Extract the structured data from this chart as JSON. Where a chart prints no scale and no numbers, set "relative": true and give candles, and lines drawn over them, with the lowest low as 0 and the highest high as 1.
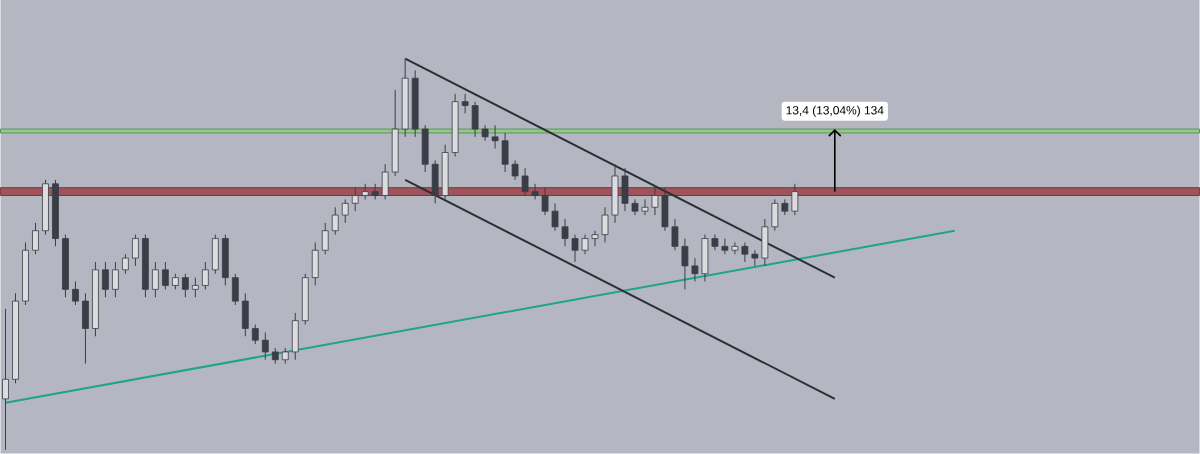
{
  "chart_data": {
    "type": "candlestick",
    "relative": true,
    "color": "#3a3d46",
    "categories": [
      null,
      null,
      null,
      null,
      null,
      null,
      null,
      null,
      null,
      null,
      null,
      null,
      null,
      null,
      null,
      null,
      null,
      null,
      null,
      null,
      null,
      null,
      null,
      null,
      null,
      null,
      null,
      null,
      null,
      null,
      null,
      null,
      null,
      null,
      null,
      null,
      null,
      null,
      null,
      null,
      null,
      null,
      null,
      null,
      null,
      null,
      null,
      null,
      null,
      null,
      null,
      null,
      null,
      null,
      null,
      null,
      null,
      null,
      null,
      null,
      null,
      null,
      null,
      null,
      null,
      null,
      null,
      null,
      null,
      null,
      null,
      null,
      null,
      null,
      null,
      null,
      null,
      null,
      null,
      null,
      null,
      null,
      null,
      null,
      null,
      null,
      null,
      null,
      null,
      null,
      null,
      null,
      null,
      null,
      null,
      null,
      null,
      null,
      null,
      null,
      null,
      null,
      null,
      null,
      null,
      null,
      null,
      null,
      null,
      null,
      null,
      null,
      null,
      null,
      null,
      null,
      null,
      null,
      null,
      null
    ],
    "ohlc": [
      [
        0.13,
        0.36,
        0.0,
        0.18
      ],
      [
        0.18,
        0.4,
        0.17,
        0.38
      ],
      [
        0.38,
        0.53,
        0.37,
        0.51
      ],
      [
        0.51,
        0.58,
        0.5,
        0.56
      ],
      [
        0.56,
        0.69,
        0.55,
        0.68
      ],
      [
        0.68,
        0.69,
        0.52,
        0.54
      ],
      [
        0.54,
        0.55,
        0.39,
        0.41
      ],
      [
        0.41,
        0.43,
        0.37,
        0.38
      ],
      [
        0.38,
        0.4,
        0.22,
        0.31
      ],
      [
        0.31,
        0.48,
        0.29,
        0.46
      ],
      [
        0.46,
        0.48,
        0.39,
        0.41
      ],
      [
        0.41,
        0.48,
        0.39,
        0.46
      ],
      [
        0.46,
        0.5,
        0.45,
        0.49
      ],
      [
        0.49,
        0.55,
        0.47,
        0.54
      ],
      [
        0.54,
        0.55,
        0.39,
        0.41
      ],
      [
        0.41,
        0.48,
        0.39,
        0.46
      ],
      [
        0.46,
        0.48,
        0.41,
        0.42
      ],
      [
        0.42,
        0.45,
        0.41,
        0.44
      ],
      [
        0.44,
        0.45,
        0.39,
        0.41
      ],
      [
        0.41,
        0.44,
        0.39,
        0.42
      ],
      [
        0.42,
        0.48,
        0.41,
        0.46
      ],
      [
        0.46,
        0.55,
        0.45,
        0.54
      ],
      [
        0.54,
        0.55,
        0.42,
        0.44
      ],
      [
        0.44,
        0.45,
        0.37,
        0.38
      ],
      [
        0.38,
        0.4,
        0.29,
        0.31
      ],
      [
        0.31,
        0.32,
        0.27,
        0.28
      ],
      [
        0.28,
        0.3,
        0.23,
        0.25
      ],
      [
        0.25,
        0.26,
        0.22,
        0.23
      ],
      [
        0.23,
        0.26,
        0.22,
        0.25
      ],
      [
        0.25,
        0.35,
        0.23,
        0.33
      ],
      [
        0.33,
        0.45,
        0.32,
        0.44
      ],
      [
        0.44,
        0.53,
        0.42,
        0.51
      ],
      [
        0.51,
        0.58,
        0.5,
        0.56
      ],
      [
        0.56,
        0.62,
        0.55,
        0.6
      ],
      [
        0.6,
        0.64,
        0.58,
        0.63
      ],
      [
        0.63,
        0.67,
        0.61,
        0.65
      ],
      [
        0.65,
        0.68,
        0.64,
        0.66
      ],
      [
        0.66,
        0.68,
        0.64,
        0.65
      ],
      [
        0.65,
        0.73,
        0.64,
        0.71
      ],
      [
        0.71,
        0.92,
        0.7,
        0.82
      ],
      [
        0.82,
        1.0,
        0.8,
        0.95
      ],
      [
        0.95,
        0.97,
        0.8,
        0.82
      ],
      [
        0.82,
        0.83,
        0.71,
        0.73
      ],
      [
        0.73,
        0.74,
        0.63,
        0.65
      ],
      [
        0.65,
        0.78,
        0.64,
        0.76
      ],
      [
        0.76,
        0.91,
        0.75,
        0.89
      ],
      [
        0.89,
        0.91,
        0.86,
        0.88
      ],
      [
        0.88,
        0.89,
        0.8,
        0.82
      ],
      [
        0.82,
        0.83,
        0.79,
        0.8
      ],
      [
        0.8,
        0.83,
        0.77,
        0.79
      ],
      [
        0.79,
        0.81,
        0.71,
        0.73
      ],
      [
        0.73,
        0.74,
        0.69,
        0.7
      ],
      [
        0.7,
        0.72,
        0.65,
        0.66
      ],
      [
        0.66,
        0.68,
        0.64,
        0.65
      ],
      [
        0.65,
        0.67,
        0.6,
        0.61
      ],
      [
        0.61,
        0.63,
        0.56,
        0.57
      ],
      [
        0.57,
        0.59,
        0.52,
        0.54
      ],
      [
        0.54,
        0.55,
        0.48,
        0.51
      ],
      [
        0.51,
        0.55,
        0.5,
        0.54
      ],
      [
        0.54,
        0.56,
        0.52,
        0.55
      ],
      [
        0.55,
        0.62,
        0.53,
        0.6
      ],
      [
        0.6,
        0.73,
        0.58,
        0.7
      ],
      [
        0.7,
        0.72,
        0.61,
        0.63
      ],
      [
        0.63,
        0.64,
        0.6,
        0.61
      ],
      [
        0.61,
        0.64,
        0.6,
        0.62
      ],
      [
        0.62,
        0.67,
        0.6,
        0.65
      ],
      [
        0.65,
        0.67,
        0.56,
        0.57
      ],
      [
        0.57,
        0.59,
        0.51,
        0.52
      ],
      [
        0.52,
        0.54,
        0.41,
        0.47
      ],
      [
        0.47,
        0.49,
        0.43,
        0.45
      ],
      [
        0.45,
        0.55,
        0.43,
        0.54
      ],
      [
        0.54,
        0.55,
        0.51,
        0.52
      ],
      [
        0.52,
        0.54,
        0.5,
        0.51
      ],
      [
        0.51,
        0.53,
        0.5,
        0.52
      ],
      [
        0.52,
        0.53,
        0.48,
        0.5
      ],
      [
        0.5,
        0.51,
        0.47,
        0.49
      ],
      [
        0.49,
        0.59,
        0.47,
        0.57
      ],
      [
        0.57,
        0.64,
        0.56,
        0.63
      ],
      [
        0.63,
        0.64,
        0.6,
        0.61
      ],
      [
        0.61,
        0.68,
        0.6,
        0.66
      ],
      null,
      null,
      null,
      null,
      null,
      null,
      null,
      null,
      null,
      null,
      null,
      null,
      null,
      null,
      null,
      null,
      null,
      null,
      null,
      null,
      null,
      null,
      null,
      null,
      null,
      null,
      null,
      null,
      null,
      null,
      null,
      null,
      null,
      null,
      null,
      null,
      null,
      null,
      null,
      null
    ],
    "series": [
      {
        "type": "line",
        "color": "#1fa38c",
        "values": [
          0.12,
          null,
          null,
          null,
          null,
          null,
          null,
          null,
          null,
          null,
          null,
          null,
          null,
          null,
          null,
          null,
          null,
          null,
          null,
          null,
          null,
          null,
          null,
          null,
          null,
          null,
          null,
          null,
          null,
          null,
          null,
          null,
          null,
          null,
          null,
          null,
          null,
          null,
          null,
          null,
          null,
          null,
          null,
          null,
          null,
          null,
          null,
          null,
          null,
          null,
          null,
          null,
          null,
          null,
          null,
          null,
          null,
          null,
          null,
          null,
          null,
          null,
          null,
          null,
          null,
          null,
          null,
          null,
          null,
          null,
          null,
          null,
          null,
          null,
          null,
          null,
          null,
          null,
          null,
          null,
          null,
          null,
          null,
          null,
          null,
          null,
          null,
          null,
          null,
          null,
          null,
          null,
          null,
          null,
          null,
          0.56,
          null,
          null,
          null,
          null,
          null,
          null,
          null,
          null,
          null,
          null,
          null,
          null,
          null,
          null,
          null,
          null,
          null,
          null,
          null,
          null,
          null,
          null,
          null,
          null
        ]
      },
      {
        "type": "line",
        "color": "#2c2e33",
        "values": [
          null,
          null,
          null,
          null,
          null,
          null,
          null,
          null,
          null,
          null,
          null,
          null,
          null,
          null,
          null,
          null,
          null,
          null,
          null,
          null,
          null,
          null,
          null,
          null,
          null,
          null,
          null,
          null,
          null,
          null,
          null,
          null,
          null,
          null,
          null,
          null,
          null,
          null,
          null,
          null,
          1.0,
          null,
          null,
          null,
          null,
          null,
          null,
          null,
          null,
          null,
          null,
          null,
          null,
          null,
          null,
          null,
          null,
          null,
          null,
          null,
          null,
          null,
          null,
          null,
          null,
          null,
          null,
          null,
          null,
          null,
          null,
          null,
          null,
          null,
          null,
          null,
          null,
          null,
          null,
          null,
          null,
          null,
          null,
          0.44,
          null,
          null,
          null,
          null,
          null,
          null,
          null,
          null,
          null,
          null,
          null,
          null,
          null,
          null,
          null,
          null,
          null,
          null,
          null,
          null,
          null,
          null,
          null,
          null,
          null,
          null,
          null,
          null,
          null,
          null,
          null,
          null,
          null,
          null,
          null,
          null
        ]
      },
      {
        "type": "line",
        "color": "#2c2e33",
        "values": [
          null,
          null,
          null,
          null,
          null,
          null,
          null,
          null,
          null,
          null,
          null,
          null,
          null,
          null,
          null,
          null,
          null,
          null,
          null,
          null,
          null,
          null,
          null,
          null,
          null,
          null,
          null,
          null,
          null,
          null,
          null,
          null,
          null,
          null,
          null,
          null,
          null,
          null,
          null,
          null,
          0.69,
          null,
          null,
          null,
          null,
          null,
          null,
          null,
          null,
          null,
          null,
          null,
          null,
          null,
          null,
          null,
          null,
          null,
          null,
          null,
          null,
          null,
          null,
          null,
          null,
          null,
          null,
          null,
          null,
          null,
          null,
          null,
          null,
          null,
          null,
          null,
          null,
          null,
          null,
          null,
          null,
          null,
          null,
          0.13,
          null,
          null,
          null,
          null,
          null,
          null,
          null,
          null,
          null,
          null,
          null,
          null,
          null,
          null,
          null,
          null,
          null,
          null,
          null,
          null,
          null,
          null,
          null,
          null,
          null,
          null,
          null,
          null,
          null,
          null,
          null,
          null,
          null,
          null,
          null,
          null
        ]
      }
    ],
    "bands": [
      {
        "axis": "y",
        "from": 0.65,
        "to": 0.67,
        "color": "#a0535b"
      },
      {
        "axis": "y",
        "from": 0.81,
        "to": 0.82,
        "color": "#8fcb8a"
      }
    ],
    "ref_lines": [
      {
        "axis": "y",
        "value": 0.66,
        "color": "#6a6c74",
        "line_style": "dashed"
      }
    ],
    "annotations": [
      {
        "text": "13,4 (13,04%) 134",
        "y": 0.82
      }
    ]
  }
}
